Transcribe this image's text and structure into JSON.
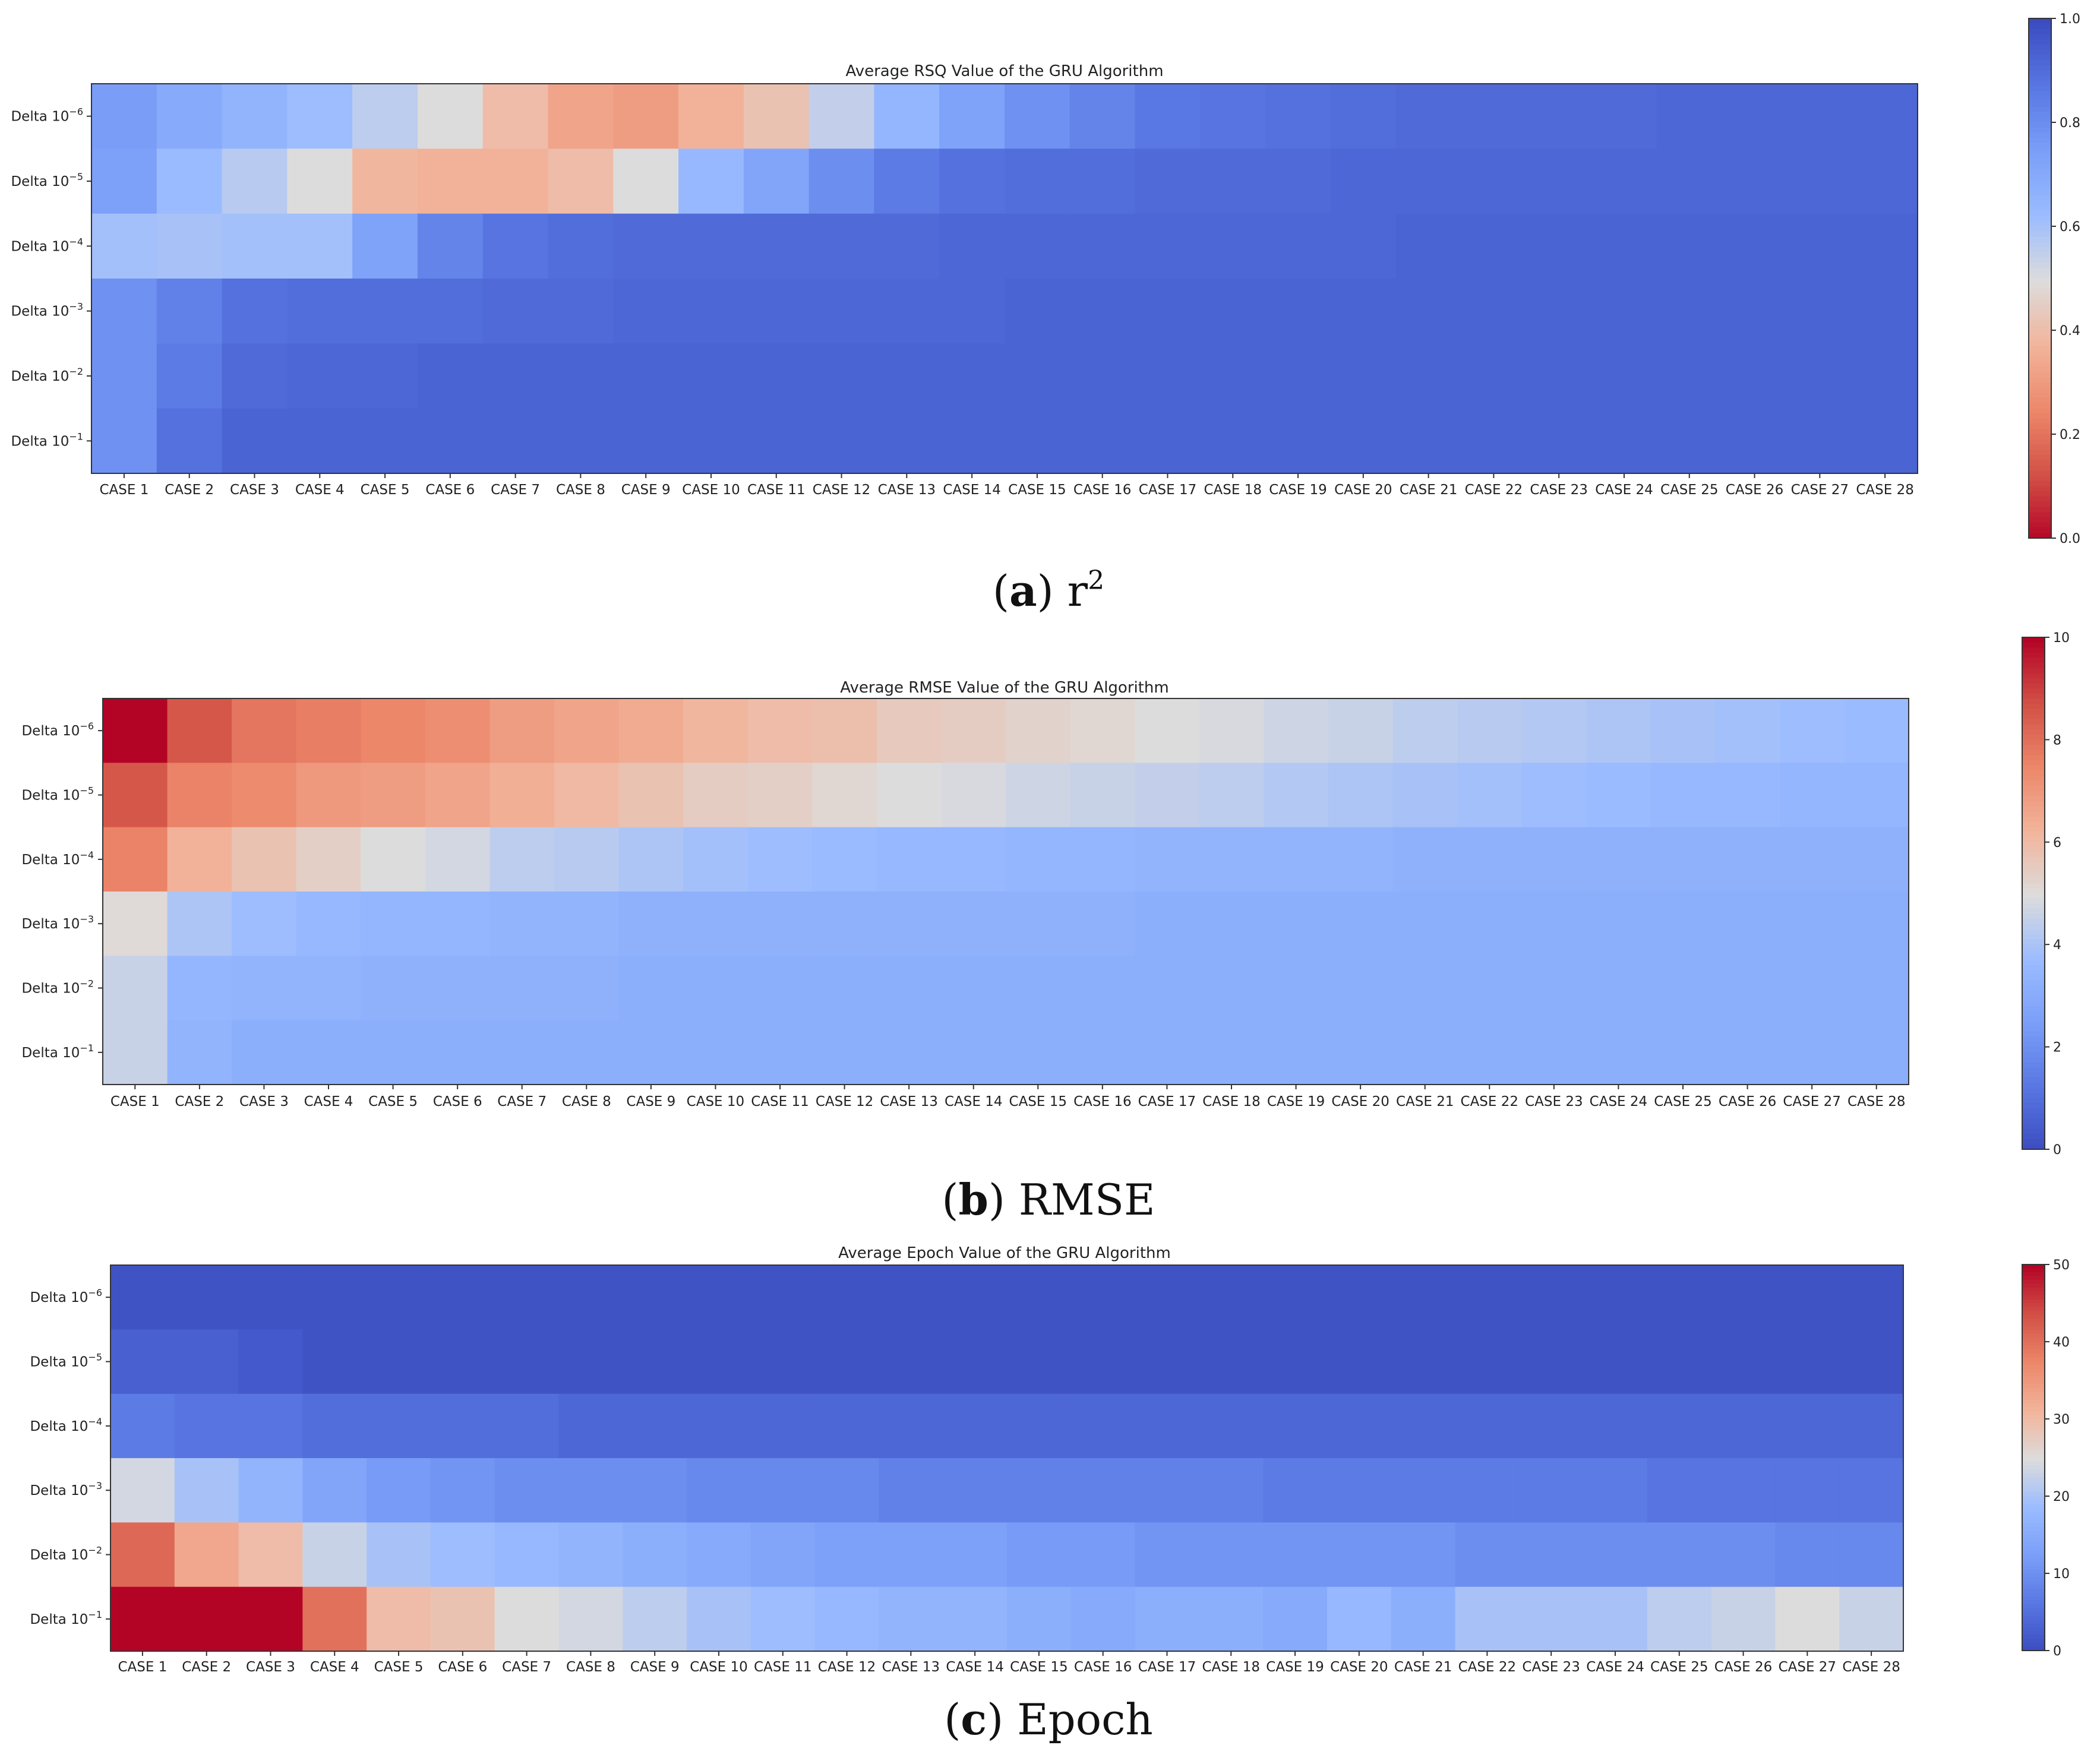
{
  "figure": {
    "panels": [
      {
        "caption_letter": "a",
        "caption_text": "r",
        "caption_sup": "2"
      },
      {
        "caption_letter": "b",
        "caption_text": "RMSE",
        "caption_sup": ""
      },
      {
        "caption_letter": "c",
        "caption_text": "Epoch",
        "caption_sup": ""
      }
    ]
  },
  "chart_data": [
    {
      "type": "heatmap",
      "title": "Average RSQ Value of the GRU Algorithm",
      "colormap": "coolwarm_r",
      "x_categories": [
        "CASE 1",
        "CASE 2",
        "CASE 3",
        "CASE 4",
        "CASE 5",
        "CASE 6",
        "CASE 7",
        "CASE 8",
        "CASE 9",
        "CASE 10",
        "CASE 11",
        "CASE 12",
        "CASE 13",
        "CASE 14",
        "CASE 15",
        "CASE 16",
        "CASE 17",
        "CASE 18",
        "CASE 19",
        "CASE 20",
        "CASE 21",
        "CASE 22",
        "CASE 23",
        "CASE 24",
        "CASE 25",
        "CASE 26",
        "CASE 27",
        "CASE 28"
      ],
      "y_categories": [
        {
          "base": "Delta 10",
          "exp": "−6"
        },
        {
          "base": "Delta 10",
          "exp": "−5"
        },
        {
          "base": "Delta 10",
          "exp": "−4"
        },
        {
          "base": "Delta 10",
          "exp": "−3"
        },
        {
          "base": "Delta 10",
          "exp": "−2"
        },
        {
          "base": "Delta 10",
          "exp": "−1"
        }
      ],
      "vmin": 0,
      "vmax": 1,
      "colorbar_ticks": [
        "0.0",
        "0.2",
        "0.4",
        "0.6",
        "0.8",
        "1.0"
      ],
      "colorbar_tick_values": [
        0,
        0.2,
        0.4,
        0.6,
        0.8,
        1.0
      ],
      "values": [
        [
          0.75,
          0.7,
          0.66,
          0.62,
          0.56,
          0.5,
          0.4,
          0.33,
          0.31,
          0.37,
          0.42,
          0.55,
          0.65,
          0.73,
          0.79,
          0.83,
          0.87,
          0.88,
          0.89,
          0.9,
          0.91,
          0.91,
          0.91,
          0.91,
          0.92,
          0.92,
          0.92,
          0.92
        ],
        [
          0.74,
          0.63,
          0.57,
          0.5,
          0.38,
          0.37,
          0.37,
          0.4,
          0.5,
          0.64,
          0.72,
          0.8,
          0.86,
          0.89,
          0.9,
          0.9,
          0.91,
          0.91,
          0.91,
          0.92,
          0.92,
          0.92,
          0.92,
          0.92,
          0.92,
          0.92,
          0.92,
          0.92
        ],
        [
          0.61,
          0.6,
          0.61,
          0.61,
          0.73,
          0.83,
          0.88,
          0.9,
          0.91,
          0.91,
          0.91,
          0.91,
          0.91,
          0.92,
          0.92,
          0.92,
          0.92,
          0.92,
          0.92,
          0.92,
          0.93,
          0.93,
          0.93,
          0.93,
          0.93,
          0.93,
          0.93,
          0.93
        ],
        [
          0.79,
          0.84,
          0.89,
          0.9,
          0.9,
          0.9,
          0.91,
          0.91,
          0.92,
          0.92,
          0.92,
          0.92,
          0.92,
          0.92,
          0.93,
          0.93,
          0.93,
          0.93,
          0.93,
          0.93,
          0.93,
          0.93,
          0.93,
          0.93,
          0.93,
          0.93,
          0.93,
          0.93
        ],
        [
          0.79,
          0.86,
          0.91,
          0.92,
          0.92,
          0.93,
          0.93,
          0.93,
          0.93,
          0.93,
          0.93,
          0.93,
          0.93,
          0.93,
          0.93,
          0.93,
          0.93,
          0.93,
          0.93,
          0.93,
          0.93,
          0.93,
          0.93,
          0.93,
          0.93,
          0.93,
          0.93,
          0.93
        ],
        [
          0.79,
          0.89,
          0.93,
          0.93,
          0.93,
          0.93,
          0.93,
          0.93,
          0.93,
          0.93,
          0.93,
          0.93,
          0.93,
          0.93,
          0.93,
          0.93,
          0.93,
          0.93,
          0.93,
          0.93,
          0.93,
          0.93,
          0.93,
          0.93,
          0.93,
          0.93,
          0.93,
          0.93
        ]
      ]
    },
    {
      "type": "heatmap",
      "title": "Average RMSE Value of the GRU Algorithm",
      "colormap": "coolwarm",
      "x_categories": [
        "CASE 1",
        "CASE 2",
        "CASE 3",
        "CASE 4",
        "CASE 5",
        "CASE 6",
        "CASE 7",
        "CASE 8",
        "CASE 9",
        "CASE 10",
        "CASE 11",
        "CASE 12",
        "CASE 13",
        "CASE 14",
        "CASE 15",
        "CASE 16",
        "CASE 17",
        "CASE 18",
        "CASE 19",
        "CASE 20",
        "CASE 21",
        "CASE 22",
        "CASE 23",
        "CASE 24",
        "CASE 25",
        "CASE 26",
        "CASE 27",
        "CASE 28"
      ],
      "y_categories": [
        {
          "base": "Delta 10",
          "exp": "−6"
        },
        {
          "base": "Delta 10",
          "exp": "−5"
        },
        {
          "base": "Delta 10",
          "exp": "−4"
        },
        {
          "base": "Delta 10",
          "exp": "−3"
        },
        {
          "base": "Delta 10",
          "exp": "−2"
        },
        {
          "base": "Delta 10",
          "exp": "−1"
        }
      ],
      "vmin": 0,
      "vmax": 10,
      "colorbar_ticks": [
        "0",
        "2",
        "4",
        "6",
        "8",
        "10"
      ],
      "colorbar_tick_values": [
        0,
        2,
        4,
        6,
        8,
        10
      ],
      "values": [
        [
          10.0,
          8.6,
          7.9,
          7.7,
          7.5,
          7.3,
          6.9,
          6.7,
          6.5,
          6.2,
          6.0,
          5.9,
          5.6,
          5.5,
          5.3,
          5.2,
          5.0,
          4.9,
          4.7,
          4.6,
          4.4,
          4.3,
          4.2,
          4.1,
          4.0,
          3.9,
          3.8,
          3.7
        ],
        [
          8.6,
          7.6,
          7.4,
          7.0,
          6.9,
          6.7,
          6.4,
          6.1,
          5.8,
          5.5,
          5.4,
          5.2,
          5.0,
          4.9,
          4.7,
          4.6,
          4.5,
          4.4,
          4.2,
          4.1,
          4.0,
          3.9,
          3.8,
          3.7,
          3.6,
          3.6,
          3.5,
          3.5
        ],
        [
          7.6,
          6.3,
          5.8,
          5.4,
          5.0,
          4.8,
          4.4,
          4.3,
          4.1,
          3.9,
          3.8,
          3.7,
          3.6,
          3.6,
          3.5,
          3.5,
          3.4,
          3.4,
          3.4,
          3.4,
          3.3,
          3.3,
          3.3,
          3.3,
          3.3,
          3.3,
          3.3,
          3.3
        ],
        [
          5.1,
          4.1,
          3.8,
          3.6,
          3.5,
          3.5,
          3.4,
          3.4,
          3.3,
          3.3,
          3.3,
          3.3,
          3.3,
          3.3,
          3.3,
          3.3,
          3.2,
          3.2,
          3.2,
          3.2,
          3.2,
          3.2,
          3.2,
          3.2,
          3.2,
          3.2,
          3.2,
          3.2
        ],
        [
          4.6,
          3.5,
          3.4,
          3.4,
          3.3,
          3.3,
          3.3,
          3.3,
          3.2,
          3.2,
          3.2,
          3.2,
          3.2,
          3.2,
          3.2,
          3.2,
          3.2,
          3.2,
          3.2,
          3.2,
          3.2,
          3.2,
          3.2,
          3.2,
          3.2,
          3.2,
          3.2,
          3.2
        ],
        [
          4.6,
          3.4,
          3.2,
          3.2,
          3.2,
          3.2,
          3.2,
          3.2,
          3.2,
          3.2,
          3.2,
          3.2,
          3.2,
          3.2,
          3.2,
          3.2,
          3.2,
          3.2,
          3.2,
          3.2,
          3.2,
          3.2,
          3.2,
          3.2,
          3.2,
          3.2,
          3.2,
          3.2
        ]
      ]
    },
    {
      "type": "heatmap",
      "title": "Average Epoch Value of the GRU Algorithm",
      "colormap": "coolwarm",
      "x_categories": [
        "CASE 1",
        "CASE 2",
        "CASE 3",
        "CASE 4",
        "CASE 5",
        "CASE 6",
        "CASE 7",
        "CASE 8",
        "CASE 9",
        "CASE 10",
        "CASE 11",
        "CASE 12",
        "CASE 13",
        "CASE 14",
        "CASE 15",
        "CASE 16",
        "CASE 17",
        "CASE 18",
        "CASE 19",
        "CASE 20",
        "CASE 21",
        "CASE 22",
        "CASE 23",
        "CASE 24",
        "CASE 25",
        "CASE 26",
        "CASE 27",
        "CASE 28"
      ],
      "y_categories": [
        {
          "base": "Delta 10",
          "exp": "−6"
        },
        {
          "base": "Delta 10",
          "exp": "−5"
        },
        {
          "base": "Delta 10",
          "exp": "−4"
        },
        {
          "base": "Delta 10",
          "exp": "−3"
        },
        {
          "base": "Delta 10",
          "exp": "−2"
        },
        {
          "base": "Delta 10",
          "exp": "−1"
        }
      ],
      "vmin": 0,
      "vmax": 50,
      "colorbar_ticks": [
        "0",
        "10",
        "20",
        "30",
        "40",
        "50"
      ],
      "colorbar_tick_values": [
        0,
        10,
        20,
        30,
        40,
        50
      ],
      "values": [
        [
          1,
          1,
          1,
          1,
          1,
          1,
          1,
          1,
          1,
          1,
          1,
          1,
          1,
          1,
          1,
          1,
          1,
          1,
          1,
          1,
          1,
          1,
          1,
          1,
          1,
          1,
          1,
          1
        ],
        [
          3,
          3,
          2,
          1,
          1,
          1,
          1,
          1,
          1,
          1,
          1,
          1,
          1,
          1,
          1,
          1,
          1,
          1,
          1,
          1,
          1,
          1,
          1,
          1,
          1,
          1,
          1,
          1
        ],
        [
          7,
          6,
          6,
          5,
          5,
          5,
          5,
          4,
          4,
          4,
          4,
          4,
          4,
          4,
          4,
          4,
          4,
          4,
          4,
          4,
          4,
          4,
          4,
          4,
          4,
          4,
          4,
          4
        ],
        [
          24,
          20,
          17,
          14,
          12,
          11,
          10,
          10,
          10,
          9,
          9,
          9,
          8,
          8,
          8,
          8,
          8,
          8,
          7,
          7,
          7,
          7,
          7,
          7,
          6,
          6,
          6,
          6
        ],
        [
          41,
          33,
          30,
          23,
          20,
          19,
          18,
          17,
          16,
          15,
          14,
          13,
          13,
          13,
          12,
          12,
          11,
          11,
          11,
          11,
          11,
          10,
          10,
          10,
          10,
          10,
          9,
          9
        ],
        [
          50,
          50,
          50,
          40,
          30,
          29,
          25,
          24,
          22,
          20,
          19,
          18,
          17,
          17,
          16,
          15,
          16,
          16,
          15,
          18,
          16,
          20,
          20,
          20,
          22,
          23,
          25,
          23
        ]
      ]
    }
  ]
}
